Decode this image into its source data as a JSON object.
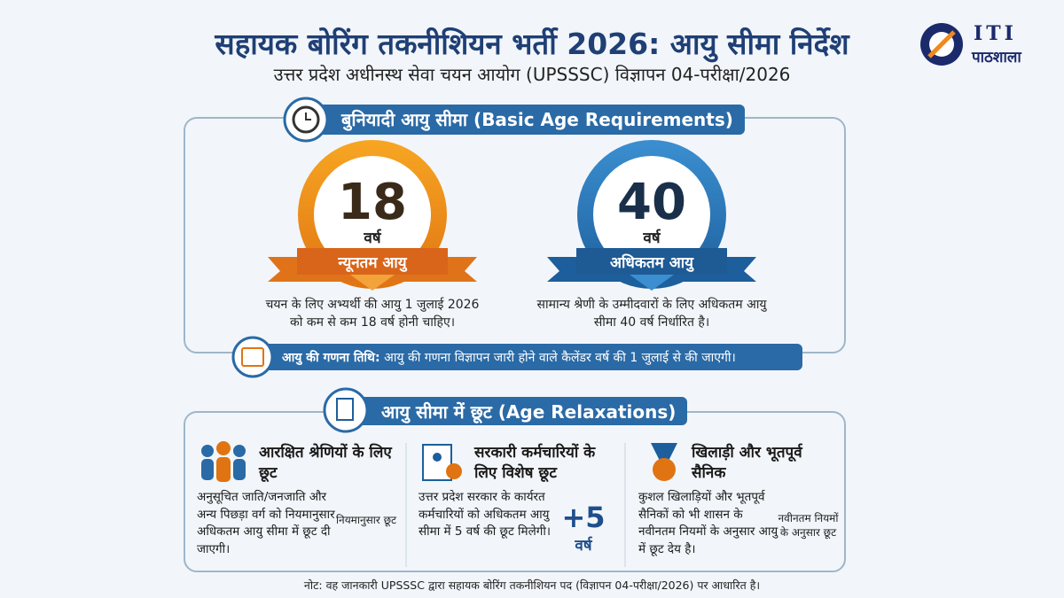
{
  "header": {
    "title": "सहायक बोरिंग तकनीशियन भर्ती 2026: आयु सीमा निर्देश",
    "subtitle": "उत्तर प्रदेश अधीनस्थ सेवा चयन आयोग (UPSSSC) विज्ञापन 04-परीक्षा/2026",
    "logo_top": "ITI",
    "logo_bottom": "पाठशाला"
  },
  "basic": {
    "heading": "बुनियादी आयु सीमा (Basic Age Requirements)",
    "minimum": {
      "number": 18,
      "unit": "वर्ष",
      "label": "न्यूनतम आयु",
      "description": "चयन के लिए अभ्यर्थी की आयु 1 जुलाई 2026 को कम से कम 18 वर्ष होनी चाहिए।"
    },
    "maximum": {
      "number": 40,
      "unit": "वर्ष",
      "label": "अधिकतम आयु",
      "description": "सामान्य श्रेणी के उम्मीदवारों के लिए अधिकतम आयु सीमा 40 वर्ष निर्धारित है।"
    },
    "calculation": {
      "label": "आयु की गणना तिथि:",
      "text": "आयु की गणना विज्ञापन जारी होने वाले कैलेंडर वर्ष की 1 जुलाई से की जाएगी।"
    }
  },
  "relaxations": {
    "heading": "आयु सीमा में छूट (Age Relaxations)",
    "cards": [
      {
        "title": "आरक्षित श्रेणियों के लिए छूट",
        "description": "अनुसूचित जाति/जनजाति और अन्य पिछड़ा वर्ग को नियमानुसार अधिकतम आयु सीमा में छूट दी जाएगी।",
        "side_note": "नियमानुसार छूट"
      },
      {
        "title": "सरकारी कर्मचारियों के लिए विशेष छूट",
        "description": "उत्तर प्रदेश सरकार के कार्यरत कर्मचारियों को अधिकतम आयु सीमा में 5 वर्ष की छूट मिलेगी।",
        "badge": "+5",
        "badge_unit": "वर्ष"
      },
      {
        "title": "खिलाड़ी और भूतपूर्व सैनिक",
        "description": "कुशल खिलाड़ियों और भूतपूर्व सैनिकों को भी शासन के नवीनतम नियमों के अनुसार आयु में छूट देय है।",
        "side_note": "नवीनतम नियमों के अनुसार छूट"
      }
    ]
  },
  "note": "नोट: वह जानकारी UPSSSC द्वारा सहायक बोरिंग तकनीशियन पद (विज्ञापन 04-परीक्षा/2026) पर आधारित है।"
}
